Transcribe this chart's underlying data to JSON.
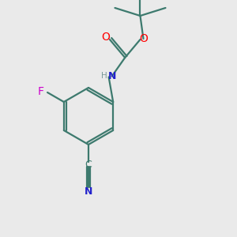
{
  "bg_color": "#eaeaea",
  "bond_color": "#3d7a6e",
  "colors": {
    "O": "#ff0000",
    "N": "#2222cc",
    "F": "#cc00cc",
    "H": "#7a9a99",
    "C": "#3d7a6e",
    "CN_N": "#2222cc"
  },
  "figsize": [
    3.0,
    3.0
  ],
  "dpi": 100
}
